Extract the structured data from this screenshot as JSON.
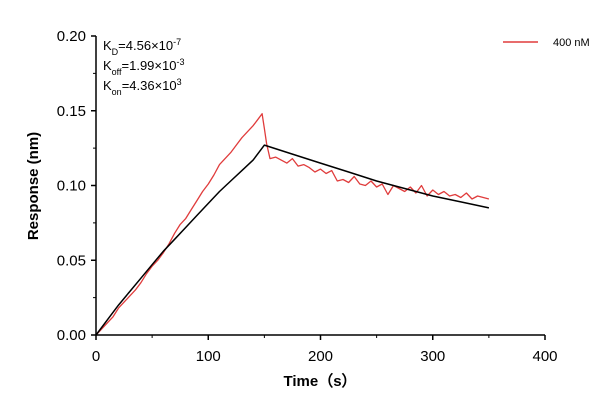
{
  "chart_data": {
    "type": "line",
    "xlabel": "Time（s）",
    "ylabel": "Response (nm)",
    "xlim": [
      0,
      400
    ],
    "ylim": [
      0,
      0.2
    ],
    "x_ticks": [
      "0",
      "100",
      "200",
      "300",
      "400"
    ],
    "y_ticks": [
      "0.00",
      "0.05",
      "0.10",
      "0.15",
      "0.20"
    ],
    "grid": false,
    "legend_position": "top-right",
    "colors": {
      "measured": "#e03c3c",
      "fit": "#000000"
    },
    "annotations": {
      "kd": {
        "base": "K",
        "sub": "D",
        "value": "=4.56×10",
        "exp": "-7"
      },
      "koff": {
        "base": "K",
        "sub": "off",
        "value": "=1.99×10",
        "exp": "-3"
      },
      "kon": {
        "base": "K",
        "sub": "on",
        "value": "=4.36×10",
        "exp": "3"
      }
    },
    "series": [
      {
        "name": "400 nM",
        "style": "measured",
        "x": [
          0,
          5,
          10,
          15,
          20,
          25,
          30,
          35,
          40,
          45,
          50,
          55,
          60,
          65,
          70,
          75,
          80,
          85,
          90,
          95,
          100,
          105,
          110,
          115,
          120,
          125,
          130,
          135,
          140,
          145,
          148,
          150,
          152,
          155,
          160,
          165,
          170,
          175,
          180,
          185,
          190,
          195,
          200,
          205,
          210,
          215,
          220,
          225,
          230,
          235,
          240,
          245,
          250,
          255,
          260,
          265,
          270,
          275,
          280,
          285,
          290,
          295,
          300,
          305,
          310,
          315,
          320,
          325,
          330,
          335,
          340,
          345,
          350
        ],
        "y": [
          0.0,
          0.004,
          0.008,
          0.012,
          0.018,
          0.022,
          0.026,
          0.03,
          0.035,
          0.041,
          0.046,
          0.05,
          0.055,
          0.061,
          0.068,
          0.074,
          0.078,
          0.084,
          0.09,
          0.096,
          0.101,
          0.107,
          0.114,
          0.118,
          0.122,
          0.127,
          0.132,
          0.136,
          0.14,
          0.145,
          0.148,
          0.138,
          0.128,
          0.118,
          0.119,
          0.117,
          0.115,
          0.118,
          0.113,
          0.114,
          0.112,
          0.109,
          0.111,
          0.108,
          0.11,
          0.103,
          0.104,
          0.102,
          0.106,
          0.101,
          0.1,
          0.103,
          0.099,
          0.101,
          0.094,
          0.1,
          0.098,
          0.096,
          0.099,
          0.095,
          0.1,
          0.093,
          0.097,
          0.094,
          0.096,
          0.093,
          0.094,
          0.092,
          0.095,
          0.091,
          0.093,
          0.092,
          0.091
        ]
      },
      {
        "style": "fit",
        "x": [
          0,
          10,
          20,
          30,
          40,
          50,
          60,
          70,
          80,
          90,
          100,
          110,
          120,
          130,
          140,
          150,
          175,
          200,
          225,
          250,
          275,
          300,
          325,
          350
        ],
        "y": [
          0.0,
          0.01,
          0.02,
          0.029,
          0.038,
          0.047,
          0.056,
          0.064,
          0.072,
          0.08,
          0.088,
          0.096,
          0.103,
          0.11,
          0.117,
          0.127,
          0.121,
          0.115,
          0.109,
          0.103,
          0.098,
          0.093,
          0.089,
          0.085
        ]
      }
    ]
  }
}
